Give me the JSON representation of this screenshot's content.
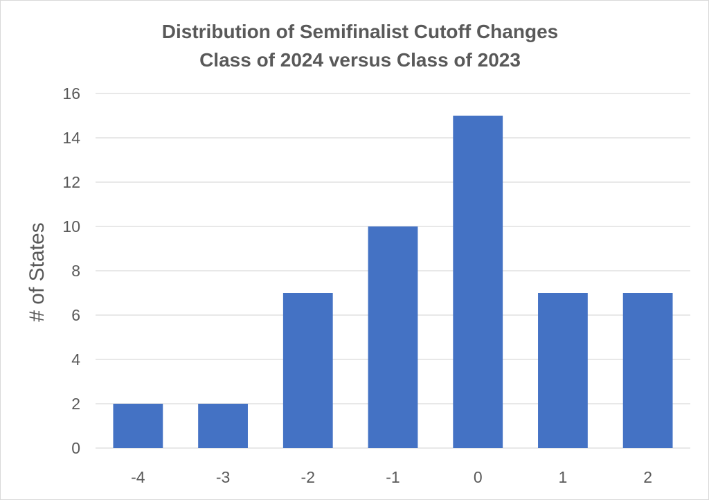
{
  "chart_data": {
    "type": "bar",
    "title": "Distribution of Semifinalist Cutoff Changes",
    "subtitle": "Class of 2024 versus Class of 2023",
    "xlabel": "",
    "ylabel": "# of States",
    "categories": [
      "-4",
      "-3",
      "-2",
      "-1",
      "0",
      "1",
      "2"
    ],
    "values": [
      2,
      2,
      7,
      10,
      15,
      7,
      7
    ],
    "ylim": [
      0,
      16
    ],
    "yticks": [
      0,
      2,
      4,
      6,
      8,
      10,
      12,
      14,
      16
    ],
    "grid": true,
    "legend": "none",
    "colors": {
      "bar": "#4472C4",
      "grid": "#d9d9d9",
      "text": "#595959"
    }
  }
}
